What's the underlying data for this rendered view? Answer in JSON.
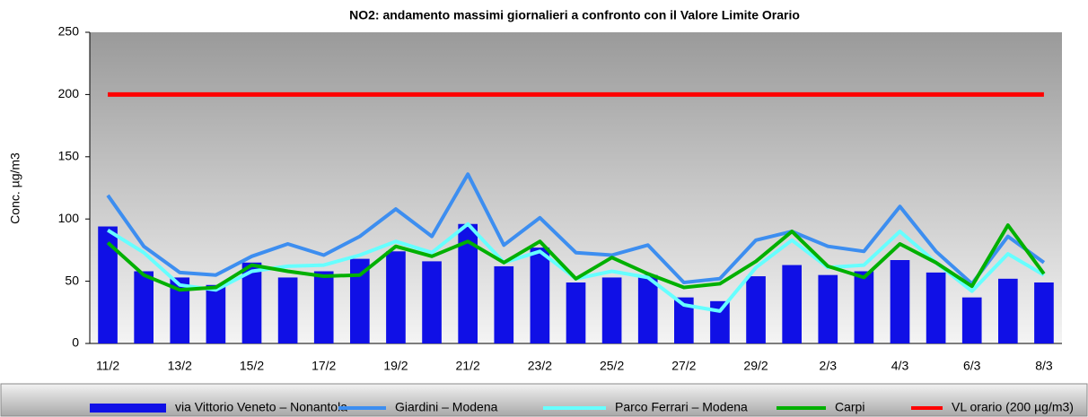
{
  "chart_data": {
    "type": "bar",
    "title": "NO2: andamento massimi giornalieri a confronto con il Valore Limite Orario",
    "y_label": "Conc. µg/m3",
    "categories": [
      "11/2",
      null,
      "13/2",
      null,
      "15/2",
      null,
      "17/2",
      null,
      "19/2",
      null,
      "21/2",
      null,
      "23/2",
      null,
      "25/2",
      null,
      "27/2",
      null,
      "29/2",
      null,
      "2/3",
      null,
      "4/3",
      null,
      "6/3",
      null,
      "8/3"
    ],
    "ylim": [
      0,
      250
    ],
    "yticks": [
      0,
      50,
      100,
      150,
      200,
      250
    ],
    "grid": false,
    "legend": "bottom",
    "series": [
      {
        "name": "via Vittorio Veneto – Nonantola",
        "type": "bar",
        "color": "#1010e6",
        "values": [
          94,
          58,
          53,
          47,
          65,
          53,
          58,
          68,
          74,
          66,
          96,
          62,
          77,
          49,
          53,
          55,
          37,
          34,
          54,
          63,
          55,
          58,
          67,
          57,
          37,
          52,
          49
        ]
      },
      {
        "name": "Giardini – Modena",
        "type": "line",
        "color": "#3d8ef0",
        "values": [
          119,
          78,
          57,
          55,
          70,
          80,
          71,
          86,
          108,
          86,
          136,
          79,
          101,
          73,
          71,
          79,
          49,
          52,
          83,
          90,
          78,
          74,
          110,
          74,
          48,
          86,
          65
        ]
      },
      {
        "name": "Parco Ferrari – Modena",
        "type": "line",
        "color": "#66ffff",
        "values": [
          91,
          73,
          47,
          43,
          58,
          62,
          63,
          71,
          82,
          73,
          96,
          65,
          74,
          52,
          58,
          53,
          31,
          26,
          61,
          83,
          61,
          63,
          90,
          65,
          42,
          72,
          55
        ]
      },
      {
        "name": "Carpi",
        "type": "line",
        "color": "#00b000",
        "values": [
          81,
          55,
          43,
          45,
          63,
          58,
          54,
          55,
          78,
          70,
          82,
          65,
          82,
          52,
          69,
          56,
          45,
          48,
          66,
          90,
          62,
          53,
          80,
          65,
          46,
          95,
          56
        ]
      },
      {
        "name": "VL orario (200 µg/m3)",
        "type": "line",
        "color": "#ff0000",
        "values": [
          200,
          200,
          200,
          200,
          200,
          200,
          200,
          200,
          200,
          200,
          200,
          200,
          200,
          200,
          200,
          200,
          200,
          200,
          200,
          200,
          200,
          200,
          200,
          200,
          200,
          200,
          200
        ]
      }
    ]
  }
}
